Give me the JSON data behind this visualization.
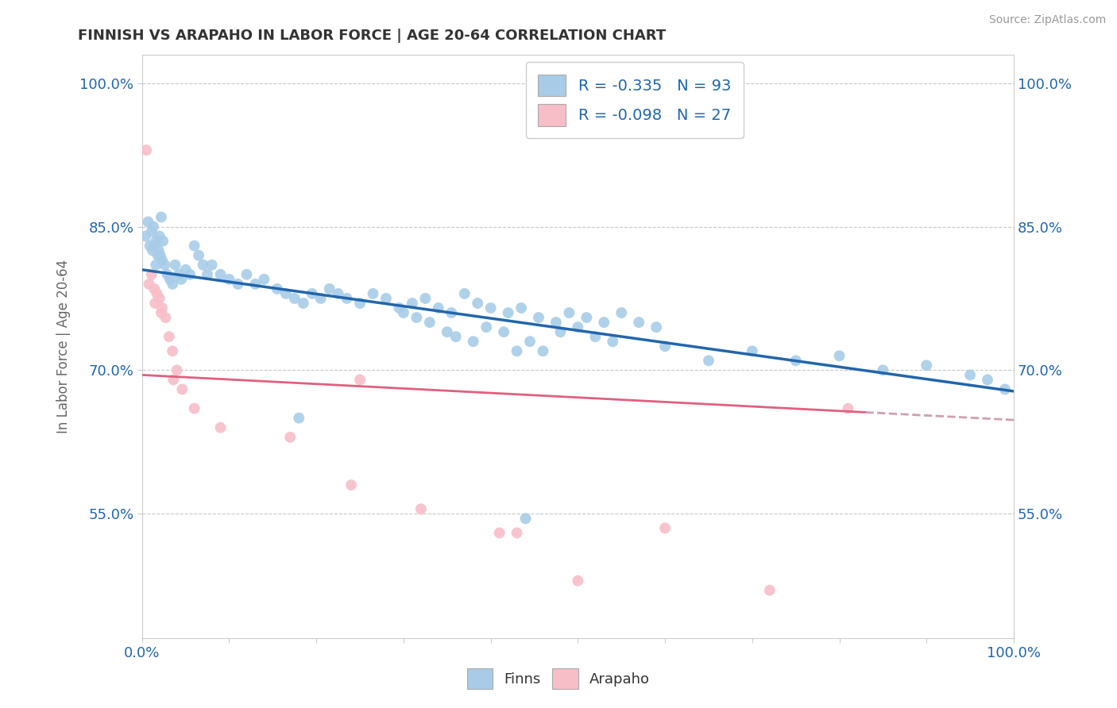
{
  "title": "FINNISH VS ARAPAHO IN LABOR FORCE | AGE 20-64 CORRELATION CHART",
  "source": "Source: ZipAtlas.com",
  "ylabel": "In Labor Force | Age 20-64",
  "xlim": [
    0.0,
    1.0
  ],
  "ylim": [
    0.42,
    1.03
  ],
  "x_ticks": [
    0.0,
    0.1,
    0.2,
    0.3,
    0.4,
    0.5,
    0.6,
    0.7,
    0.8,
    0.9,
    1.0
  ],
  "x_tick_labels": [
    "0.0%",
    "",
    "",
    "",
    "",
    "",
    "",
    "",
    "",
    "",
    "100.0%"
  ],
  "y_tick_labels": [
    "55.0%",
    "70.0%",
    "85.0%",
    "100.0%"
  ],
  "y_ticks": [
    0.55,
    0.7,
    0.85,
    1.0
  ],
  "finns_color": "#a8cce8",
  "arapaho_color": "#f7bec8",
  "finns_line_color": "#2166ac",
  "arapaho_line_color": "#e06080",
  "arapaho_dash_color": "#d0a0b0",
  "finns_R": -0.335,
  "finns_N": 93,
  "arapaho_R": -0.098,
  "arapaho_N": 27,
  "legend_text_color": "#2166ac",
  "background_color": "#ffffff",
  "grid_color": "#c8c8c8",
  "finns_scatter_x": [
    0.004,
    0.007,
    0.009,
    0.011,
    0.013,
    0.016,
    0.018,
    0.02,
    0.022,
    0.024,
    0.012,
    0.014,
    0.016,
    0.019,
    0.021,
    0.023,
    0.026,
    0.029,
    0.032,
    0.035,
    0.038,
    0.042,
    0.045,
    0.05,
    0.055,
    0.06,
    0.065,
    0.07,
    0.075,
    0.08,
    0.09,
    0.1,
    0.11,
    0.12,
    0.13,
    0.14,
    0.155,
    0.165,
    0.175,
    0.185,
    0.195,
    0.205,
    0.215,
    0.225,
    0.235,
    0.25,
    0.265,
    0.28,
    0.295,
    0.31,
    0.325,
    0.34,
    0.355,
    0.37,
    0.385,
    0.4,
    0.42,
    0.435,
    0.455,
    0.475,
    0.49,
    0.51,
    0.53,
    0.55,
    0.57,
    0.59,
    0.48,
    0.5,
    0.52,
    0.54,
    0.3,
    0.315,
    0.33,
    0.35,
    0.36,
    0.38,
    0.395,
    0.415,
    0.43,
    0.445,
    0.46,
    0.6,
    0.65,
    0.7,
    0.75,
    0.8,
    0.85,
    0.9,
    0.95,
    0.97,
    0.99,
    0.18,
    0.44
  ],
  "finns_scatter_y": [
    0.84,
    0.855,
    0.83,
    0.845,
    0.85,
    0.835,
    0.82,
    0.84,
    0.86,
    0.835,
    0.825,
    0.83,
    0.81,
    0.825,
    0.82,
    0.815,
    0.81,
    0.8,
    0.795,
    0.79,
    0.81,
    0.8,
    0.795,
    0.805,
    0.8,
    0.83,
    0.82,
    0.81,
    0.8,
    0.81,
    0.8,
    0.795,
    0.79,
    0.8,
    0.79,
    0.795,
    0.785,
    0.78,
    0.775,
    0.77,
    0.78,
    0.775,
    0.785,
    0.78,
    0.775,
    0.77,
    0.78,
    0.775,
    0.765,
    0.77,
    0.775,
    0.765,
    0.76,
    0.78,
    0.77,
    0.765,
    0.76,
    0.765,
    0.755,
    0.75,
    0.76,
    0.755,
    0.75,
    0.76,
    0.75,
    0.745,
    0.74,
    0.745,
    0.735,
    0.73,
    0.76,
    0.755,
    0.75,
    0.74,
    0.735,
    0.73,
    0.745,
    0.74,
    0.72,
    0.73,
    0.72,
    0.725,
    0.71,
    0.72,
    0.71,
    0.715,
    0.7,
    0.705,
    0.695,
    0.69,
    0.68,
    0.65,
    0.545
  ],
  "arapaho_scatter_x": [
    0.005,
    0.008,
    0.011,
    0.014,
    0.017,
    0.02,
    0.023,
    0.027,
    0.031,
    0.036,
    0.04,
    0.046,
    0.06,
    0.09,
    0.17,
    0.24,
    0.32,
    0.41,
    0.5,
    0.6,
    0.72,
    0.81,
    0.25,
    0.43,
    0.015,
    0.022,
    0.035
  ],
  "arapaho_scatter_y": [
    0.93,
    0.79,
    0.8,
    0.785,
    0.78,
    0.775,
    0.765,
    0.755,
    0.735,
    0.69,
    0.7,
    0.68,
    0.66,
    0.64,
    0.63,
    0.58,
    0.555,
    0.53,
    0.48,
    0.535,
    0.47,
    0.66,
    0.69,
    0.53,
    0.77,
    0.76,
    0.72
  ]
}
